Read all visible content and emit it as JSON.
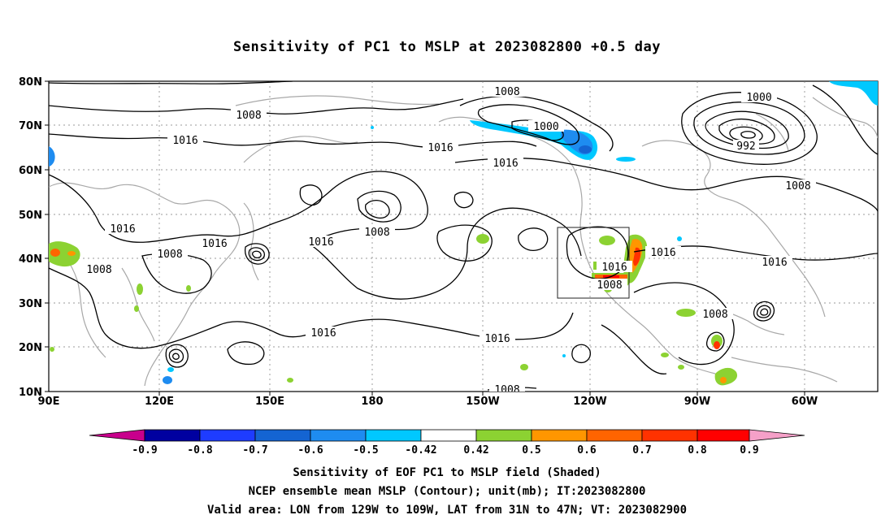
{
  "title": "Sensitivity of PC1 to MSLP at 2023082800 +0.5 day",
  "map": {
    "lat_labels": [
      "80N",
      "70N",
      "60N",
      "50N",
      "40N",
      "30N",
      "20N",
      "10N"
    ],
    "lon_labels": [
      "90E",
      "120E",
      "150E",
      "180",
      "150W",
      "120W",
      "90W",
      "60W"
    ],
    "contour_labels": [
      {
        "text": "1008",
        "key": "a"
      },
      {
        "text": "1016",
        "key": "b"
      },
      {
        "text": "1008",
        "key": "c"
      },
      {
        "text": "1000",
        "key": "d"
      },
      {
        "text": "1016",
        "key": "e"
      },
      {
        "text": "1016",
        "key": "f"
      },
      {
        "text": "1000",
        "key": "g"
      },
      {
        "text": "992",
        "key": "h"
      },
      {
        "text": "1008",
        "key": "i"
      },
      {
        "text": "1016",
        "key": "j"
      },
      {
        "text": "1008",
        "key": "k"
      },
      {
        "text": "1016",
        "key": "l"
      },
      {
        "text": "1008",
        "key": "m"
      },
      {
        "text": "1016",
        "key": "n"
      },
      {
        "text": "1008",
        "key": "o"
      },
      {
        "text": "1016",
        "key": "p"
      },
      {
        "text": "1008",
        "key": "q"
      },
      {
        "text": "1016",
        "key": "r"
      },
      {
        "text": "1016",
        "key": "s"
      },
      {
        "text": "1008",
        "key": "t"
      },
      {
        "text": "1016",
        "key": "u"
      },
      {
        "text": "1016",
        "key": "v"
      },
      {
        "text": "1016",
        "key": "w"
      },
      {
        "text": "1008",
        "key": "x"
      },
      {
        "text": "1008",
        "key": "y"
      }
    ],
    "valid_area_box": {
      "lon_range": [
        "129W",
        "109W"
      ],
      "lat_range": [
        "31N",
        "47N"
      ]
    }
  },
  "colorbar": {
    "labels": [
      "-0.9",
      "-0.8",
      "-0.7",
      "-0.6",
      "-0.5",
      "-0.42",
      "0.42",
      "0.5",
      "0.6",
      "0.7",
      "0.8",
      "0.9"
    ],
    "colors": [
      "#c8008c",
      "#0000a0",
      "#1e3cff",
      "#1464d2",
      "#1e8cf0",
      "#00c8ff",
      "#ffffff",
      "#8cd232",
      "#ff9600",
      "#ff6400",
      "#ff3200",
      "#ff0000",
      "#f5a0c8"
    ]
  },
  "captions": {
    "line1": "Sensitivity of EOF PC1 to MSLP field (Shaded)",
    "line2": "NCEP ensemble mean MSLP (Contour); unit(mb); IT:2023082800",
    "line3": "Valid area: LON from 129W to 109W, LAT from 31N to 47N; VT: 2023082900"
  }
}
